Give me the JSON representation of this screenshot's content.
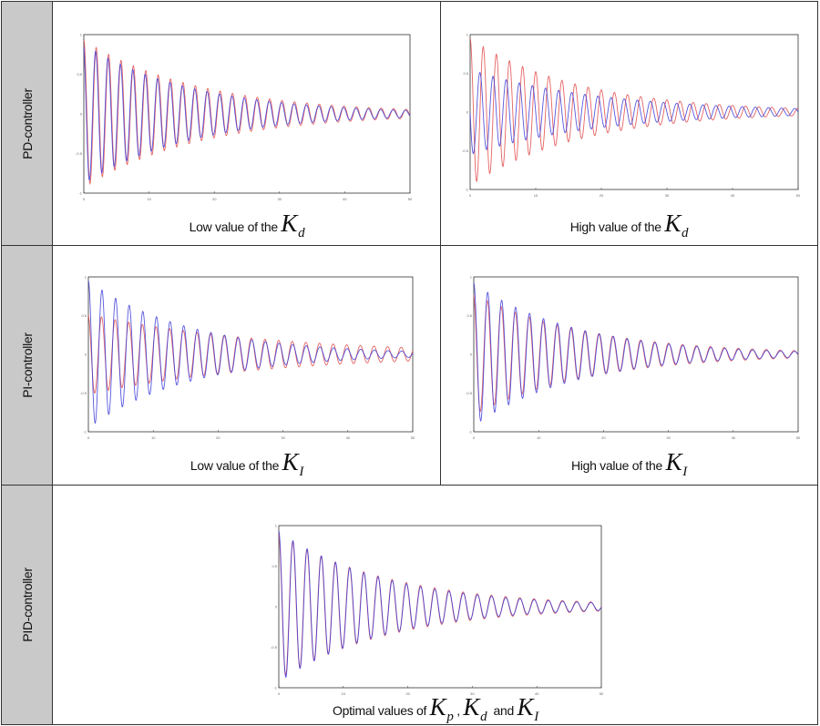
{
  "rows": [
    {
      "label": "PD-controller"
    },
    {
      "label": "PI-controller"
    },
    {
      "label": "PID-controller"
    }
  ],
  "captions": {
    "pd_low": {
      "text": "Low value of the",
      "symbol": "K",
      "sub": "d"
    },
    "pd_high": {
      "text": "High value of the",
      "symbol": "K",
      "sub": "d"
    },
    "pi_low": {
      "text": "Low value of the",
      "symbol": "K",
      "sub": "I"
    },
    "pi_high": {
      "text": "High value of the",
      "symbol": "K",
      "sub": "I"
    },
    "pid_opt": {
      "text": "Optimal values of",
      "symbol1": "K",
      "sub1": "p",
      "sep1": ",",
      "symbol2": "K",
      "sub2": "d",
      "sep2": "and",
      "symbol3": "K",
      "sub3": "I"
    }
  },
  "colors": {
    "series_red": "#e04848",
    "series_blue": "#3a3ad8",
    "frame": "#333333"
  },
  "chart_data": [
    {
      "id": "pd_low",
      "type": "line",
      "xlim": [
        0,
        100
      ],
      "ylim": [
        -1,
        1
      ],
      "xticks": [
        "0",
        "10",
        "20",
        "30",
        "40",
        "50"
      ],
      "yticks": [
        "1",
        "0.5",
        "0",
        "-0.5",
        "-1"
      ],
      "grid": false,
      "series": [
        {
          "color": "#e04848",
          "amplitude": 0.93,
          "decay": 0.028,
          "period": 3.8,
          "phase": 0.0
        },
        {
          "color": "#3a3ad8",
          "amplitude": 0.88,
          "decay": 0.03,
          "period": 3.8,
          "phase": 0.3
        }
      ]
    },
    {
      "id": "pd_high",
      "type": "line",
      "xlim": [
        0,
        100
      ],
      "ylim": [
        -1,
        1
      ],
      "xticks": [
        "0",
        "10",
        "20",
        "30",
        "40",
        "50"
      ],
      "yticks": [
        "1",
        "0.5",
        "0",
        "-0.5",
        "-1"
      ],
      "grid": false,
      "series": [
        {
          "color": "#e04848",
          "amplitude": 0.95,
          "decay": 0.03,
          "period": 4.0,
          "phase": 0.0
        },
        {
          "color": "#3a3ad8",
          "amplitude": 0.55,
          "decay": 0.025,
          "period": 4.0,
          "phase": 1.6
        }
      ]
    },
    {
      "id": "pi_low",
      "type": "line",
      "xlim": [
        0,
        100
      ],
      "ylim": [
        -1,
        1
      ],
      "xticks": [
        "0",
        "10",
        "20",
        "30",
        "40",
        "50"
      ],
      "yticks": [
        "1",
        "0.5",
        "0",
        "-0.5",
        "-1"
      ],
      "grid": false,
      "series": [
        {
          "color": "#e04848",
          "amplitude": 0.52,
          "decay": 0.018,
          "period": 4.2,
          "phase": 0.2
        },
        {
          "color": "#3a3ad8",
          "amplitude": 0.95,
          "decay": 0.032,
          "period": 4.2,
          "phase": 0.0
        }
      ]
    },
    {
      "id": "pi_high",
      "type": "line",
      "xlim": [
        0,
        100
      ],
      "ylim": [
        -1,
        1
      ],
      "xticks": [
        "0",
        "10",
        "20",
        "30",
        "40",
        "50"
      ],
      "yticks": [
        "1",
        "0.5",
        "0",
        "-0.5",
        "-1"
      ],
      "grid": false,
      "series": [
        {
          "color": "#e04848",
          "amplitude": 0.78,
          "decay": 0.028,
          "period": 4.3,
          "phase": 0.2
        },
        {
          "color": "#3a3ad8",
          "amplitude": 0.92,
          "decay": 0.032,
          "period": 4.3,
          "phase": 0.0
        }
      ]
    },
    {
      "id": "pid_opt",
      "type": "line",
      "xlim": [
        0,
        100
      ],
      "ylim": [
        -1,
        1
      ],
      "xticks": [
        "0",
        "10",
        "20",
        "30",
        "40",
        "50"
      ],
      "yticks": [
        "1",
        "0.5",
        "0",
        "-0.5",
        "-1"
      ],
      "grid": false,
      "series": [
        {
          "color": "#e04848",
          "amplitude": 0.9,
          "decay": 0.028,
          "period": 4.4,
          "phase": 0.1
        },
        {
          "color": "#3a3ad8",
          "amplitude": 0.93,
          "decay": 0.03,
          "period": 4.4,
          "phase": 0.0
        }
      ]
    }
  ]
}
